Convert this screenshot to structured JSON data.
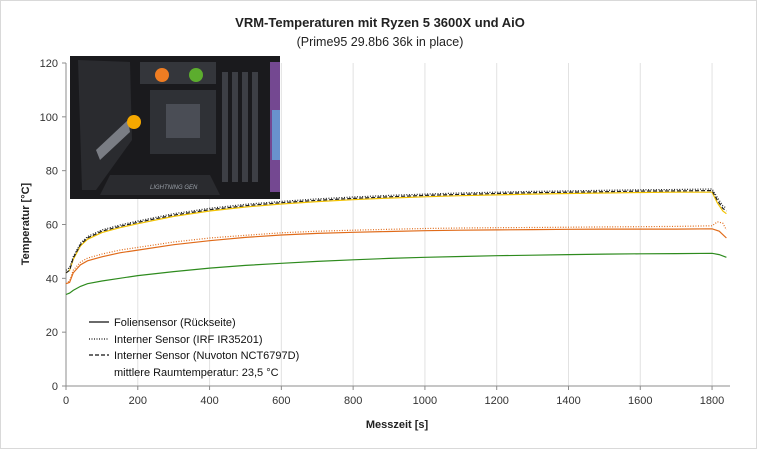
{
  "chart_data": {
    "type": "line",
    "title": "VRM-Temperaturen mit Ryzen 5 3600X und AiO",
    "subtitle": "(Prime95 29.8b6 36k in place)",
    "xlabel": "Messzeit [s]",
    "ylabel": "Temperatur [°C]",
    "xlim": [
      0,
      1850
    ],
    "ylim": [
      0,
      120
    ],
    "x_ticks": [
      0,
      200,
      400,
      600,
      800,
      1000,
      1200,
      1400,
      1600,
      1800
    ],
    "y_ticks": [
      0,
      20,
      40,
      60,
      80,
      100,
      120
    ],
    "grid": "vertical",
    "legend_position": "bottom-left",
    "legend_note": "mittlere Raumtemperatur:  23,5 °C",
    "series": [
      {
        "name": "Foliensensor (Rückseite)",
        "style": "solid",
        "color": "#2e8b1e",
        "points": [
          [
            0,
            34
          ],
          [
            10,
            34.5
          ],
          [
            20,
            35.5
          ],
          [
            40,
            37
          ],
          [
            60,
            38
          ],
          [
            100,
            39
          ],
          [
            150,
            40
          ],
          [
            200,
            41
          ],
          [
            300,
            42.5
          ],
          [
            400,
            43.8
          ],
          [
            500,
            44.8
          ],
          [
            600,
            45.6
          ],
          [
            700,
            46.3
          ],
          [
            800,
            46.9
          ],
          [
            900,
            47.4
          ],
          [
            1000,
            47.8
          ],
          [
            1100,
            48.1
          ],
          [
            1200,
            48.4
          ],
          [
            1300,
            48.6
          ],
          [
            1400,
            48.8
          ],
          [
            1500,
            49
          ],
          [
            1600,
            49.1
          ],
          [
            1700,
            49.2
          ],
          [
            1800,
            49.3
          ],
          [
            1820,
            48.8
          ],
          [
            1840,
            47.8
          ]
        ]
      },
      {
        "name": "Foliensensor (Rückseite)",
        "style": "solid",
        "color": "#e06b1a",
        "points": [
          [
            0,
            38
          ],
          [
            10,
            38.5
          ],
          [
            20,
            42
          ],
          [
            40,
            45
          ],
          [
            60,
            46.5
          ],
          [
            100,
            48
          ],
          [
            150,
            49.5
          ],
          [
            200,
            50.5
          ],
          [
            300,
            52.5
          ],
          [
            400,
            54
          ],
          [
            500,
            55.2
          ],
          [
            600,
            56.1
          ],
          [
            700,
            56.7
          ],
          [
            800,
            57.1
          ],
          [
            900,
            57.4
          ],
          [
            1000,
            57.7
          ],
          [
            1100,
            57.9
          ],
          [
            1200,
            58
          ],
          [
            1300,
            58.1
          ],
          [
            1400,
            58.2
          ],
          [
            1500,
            58.3
          ],
          [
            1600,
            58.3
          ],
          [
            1700,
            58.3
          ],
          [
            1800,
            58.4
          ],
          [
            1820,
            57.5
          ],
          [
            1840,
            55
          ]
        ]
      },
      {
        "name": "Interner Sensor (IRF IR35201)",
        "style": "dotted",
        "color": "#e06b1a",
        "points": [
          [
            0,
            38
          ],
          [
            10,
            39
          ],
          [
            20,
            43
          ],
          [
            40,
            46
          ],
          [
            60,
            47.5
          ],
          [
            100,
            49
          ],
          [
            150,
            50.5
          ],
          [
            200,
            51.5
          ],
          [
            300,
            53.5
          ],
          [
            400,
            55
          ],
          [
            500,
            56
          ],
          [
            600,
            56.9
          ],
          [
            700,
            57.5
          ],
          [
            800,
            57.9
          ],
          [
            900,
            58.2
          ],
          [
            1000,
            58.5
          ],
          [
            1100,
            58.7
          ],
          [
            1200,
            58.8
          ],
          [
            1300,
            58.9
          ],
          [
            1400,
            59
          ],
          [
            1500,
            59.1
          ],
          [
            1600,
            59.2
          ],
          [
            1700,
            59.3
          ],
          [
            1800,
            59.5
          ],
          [
            1815,
            61
          ],
          [
            1830,
            60.5
          ],
          [
            1840,
            58
          ]
        ]
      },
      {
        "name": "Foliensensor (Rückseite)",
        "style": "solid",
        "color": "#f2c200",
        "points": [
          [
            0,
            42
          ],
          [
            10,
            43
          ],
          [
            20,
            47
          ],
          [
            40,
            52
          ],
          [
            60,
            54.5
          ],
          [
            100,
            57
          ],
          [
            150,
            58.8
          ],
          [
            200,
            60.3
          ],
          [
            300,
            63
          ],
          [
            400,
            65
          ],
          [
            500,
            66.5
          ],
          [
            600,
            67.6
          ],
          [
            700,
            68.5
          ],
          [
            800,
            69.2
          ],
          [
            900,
            69.8
          ],
          [
            1000,
            70.3
          ],
          [
            1100,
            70.7
          ],
          [
            1200,
            71
          ],
          [
            1300,
            71.3
          ],
          [
            1400,
            71.5
          ],
          [
            1500,
            71.7
          ],
          [
            1600,
            71.9
          ],
          [
            1700,
            72
          ],
          [
            1800,
            72
          ],
          [
            1815,
            68
          ],
          [
            1830,
            65
          ],
          [
            1840,
            64
          ]
        ]
      },
      {
        "name": "Interner Sensor (IRF IR35201)",
        "style": "dotted",
        "color": "#222222",
        "points": [
          [
            0,
            43
          ],
          [
            10,
            44
          ],
          [
            20,
            48
          ],
          [
            40,
            53
          ],
          [
            60,
            55.5
          ],
          [
            100,
            58
          ],
          [
            150,
            59.8
          ],
          [
            200,
            61.3
          ],
          [
            300,
            64
          ],
          [
            400,
            66
          ],
          [
            500,
            67.5
          ],
          [
            600,
            68.6
          ],
          [
            700,
            69.5
          ],
          [
            800,
            70.2
          ],
          [
            900,
            70.8
          ],
          [
            1000,
            71.3
          ],
          [
            1100,
            71.7
          ],
          [
            1200,
            72
          ],
          [
            1300,
            72.3
          ],
          [
            1400,
            72.5
          ],
          [
            1500,
            72.7
          ],
          [
            1600,
            72.9
          ],
          [
            1700,
            73
          ],
          [
            1800,
            73.2
          ],
          [
            1815,
            70
          ],
          [
            1830,
            67
          ],
          [
            1840,
            66
          ]
        ]
      },
      {
        "name": "Interner Sensor (Nuvoton NCT6797D)",
        "style": "dashed",
        "color": "#222222",
        "points": [
          [
            0,
            42
          ],
          [
            10,
            43
          ],
          [
            20,
            47.5
          ],
          [
            40,
            52.5
          ],
          [
            60,
            55
          ],
          [
            100,
            57.5
          ],
          [
            150,
            59.3
          ],
          [
            200,
            60.8
          ],
          [
            300,
            63.5
          ],
          [
            400,
            65.5
          ],
          [
            500,
            67
          ],
          [
            600,
            68.1
          ],
          [
            700,
            69
          ],
          [
            800,
            69.7
          ],
          [
            900,
            70.3
          ],
          [
            1000,
            70.8
          ],
          [
            1100,
            71.2
          ],
          [
            1200,
            71.5
          ],
          [
            1300,
            71.8
          ],
          [
            1400,
            72
          ],
          [
            1500,
            72.2
          ],
          [
            1600,
            72.4
          ],
          [
            1700,
            72.5
          ],
          [
            1800,
            72.6
          ],
          [
            1815,
            69
          ],
          [
            1830,
            66
          ],
          [
            1840,
            65
          ]
        ]
      }
    ]
  },
  "legend": [
    {
      "label": "Foliensensor (Rückseite)",
      "style": "solid"
    },
    {
      "label": "Interner Sensor (IRF IR35201)",
      "style": "dotted"
    },
    {
      "label": "Interner Sensor (Nuvoton NCT6797D)",
      "style": "dashed"
    }
  ],
  "board_image": {
    "brand_text": "LIGHTNING GEN",
    "marker_colors": [
      "#ef7d22",
      "#5cad2e",
      "#f5a800"
    ]
  }
}
